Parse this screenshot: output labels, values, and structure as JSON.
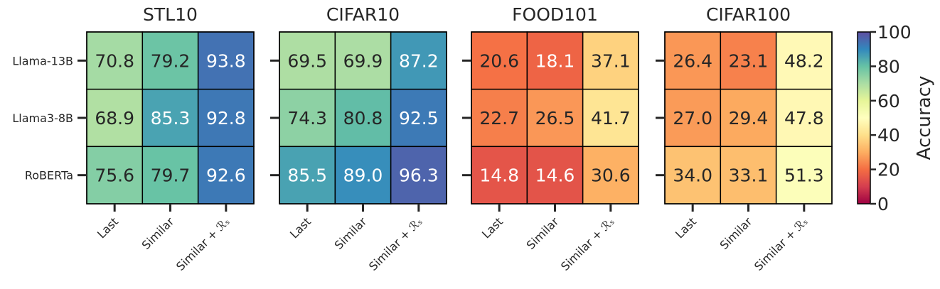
{
  "chart_data": {
    "type": "heatmap",
    "colormap": "Spectral",
    "vmin": 0,
    "vmax": 100,
    "rows": [
      "Llama-13B",
      "Llama3-8B",
      "RoBERTa"
    ],
    "columns": [
      "Last",
      "Similar",
      "Similar + ℛₛ"
    ],
    "panels": [
      {
        "title": "STL10",
        "values": [
          [
            70.8,
            79.2,
            93.8
          ],
          [
            68.9,
            85.3,
            92.8
          ],
          [
            75.6,
            79.7,
            92.6
          ]
        ]
      },
      {
        "title": "CIFAR10",
        "values": [
          [
            69.5,
            69.9,
            87.2
          ],
          [
            74.3,
            80.8,
            92.5
          ],
          [
            85.5,
            89.0,
            96.3
          ]
        ]
      },
      {
        "title": "FOOD101",
        "values": [
          [
            20.6,
            18.1,
            37.1
          ],
          [
            22.7,
            26.5,
            41.7
          ],
          [
            14.8,
            14.6,
            30.6
          ]
        ]
      },
      {
        "title": "CIFAR100",
        "values": [
          [
            26.4,
            23.1,
            48.2
          ],
          [
            27.0,
            29.4,
            47.8
          ],
          [
            34.0,
            33.1,
            51.3
          ]
        ]
      }
    ],
    "colorbar": {
      "label": "Accuracy",
      "ticks": [
        0,
        20,
        40,
        60,
        80,
        100
      ]
    }
  }
}
